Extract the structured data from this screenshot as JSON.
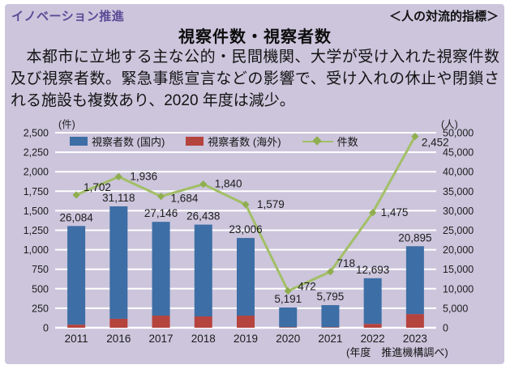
{
  "header": {
    "category": "イノベーション推進",
    "indicator": "＜人の対流的指標＞"
  },
  "title": "視察件数・視察者数",
  "description": "　本都市に立地する主な公的・民間機関、大学が受け入れた視察件数及び視察者数。緊急事態宣言などの影響で、受け入れの休止や閉鎖される施設も複数あり、2020 年度は減少。",
  "colors": {
    "panel_bg": "#CCC5DC",
    "bar_domestic": "#3D6EA5",
    "bar_overseas": "#B5433E",
    "line": "#A2BF66",
    "marker": "#8FAE4F",
    "grid": "#FFFFFF",
    "heading_purple": "#5A4B96"
  },
  "chart_data": {
    "type": "combo",
    "categories": [
      "2011",
      "2016",
      "2017",
      "2018",
      "2019",
      "2020",
      "2021",
      "2022",
      "2023"
    ],
    "series": [
      {
        "name": "視察者数 (国内)",
        "type": "bar",
        "stack": "visitors",
        "axis": "right",
        "estimated": true,
        "values": [
          25284,
          28818,
          24046,
          23538,
          19906,
          5041,
          5645,
          11693,
          17395
        ]
      },
      {
        "name": "視察者数 (海外)",
        "type": "bar",
        "stack": "visitors",
        "axis": "right",
        "estimated": true,
        "values": [
          800,
          2300,
          3100,
          2900,
          3100,
          150,
          150,
          1000,
          3500
        ]
      },
      {
        "name": "件数",
        "type": "line",
        "axis": "left",
        "values": [
          1702,
          1936,
          1684,
          1840,
          1579,
          472,
          718,
          1475,
          2452
        ]
      }
    ],
    "visitor_totals_labeled": [
      26084,
      31118,
      27146,
      26438,
      23006,
      5191,
      5795,
      12693,
      20895
    ],
    "left_axis": {
      "unit": "(件)",
      "min": 0,
      "max": 2500,
      "step": 250
    },
    "right_axis": {
      "unit": "(人)",
      "min": 0,
      "max": 50000,
      "step": 5000
    },
    "axis_source_note": "(年度　推進機構調べ)",
    "legend_position": "top",
    "grid": "on"
  }
}
